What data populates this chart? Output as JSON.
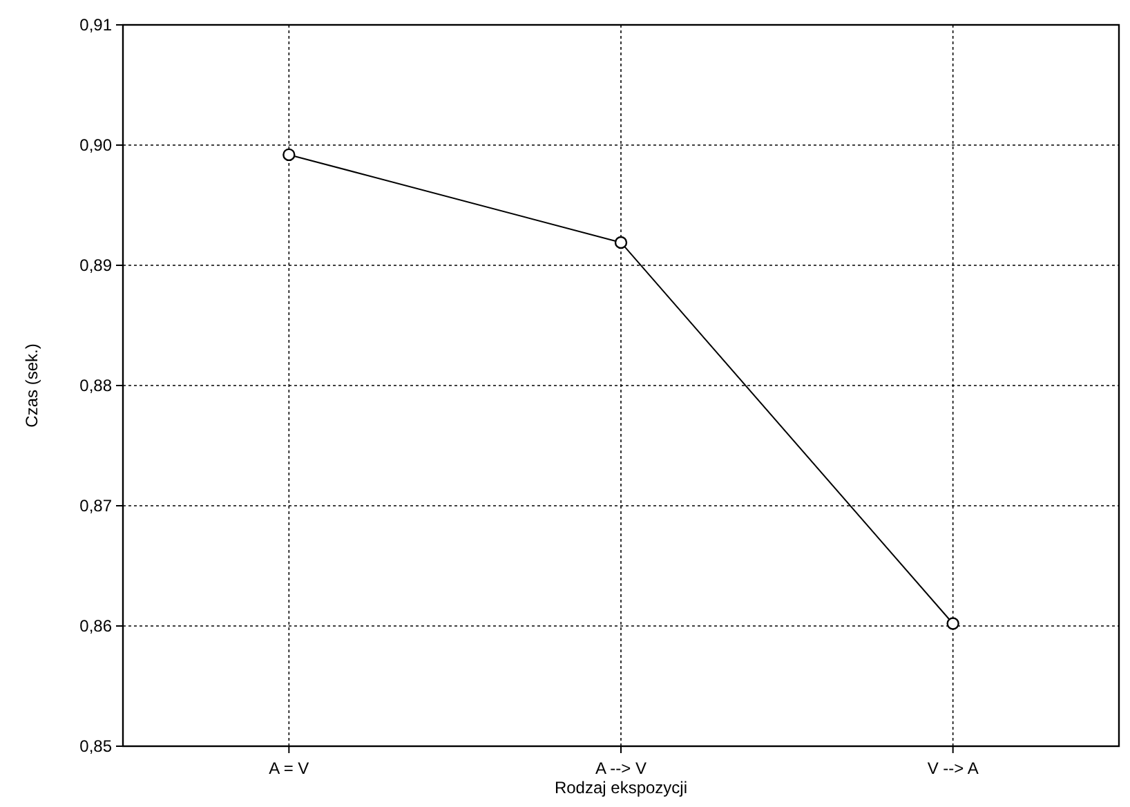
{
  "chart_data": {
    "type": "line",
    "xlabel": "Rodzaj ekspozycji",
    "ylabel": "Czas (sek.)",
    "categories": [
      "A = V",
      "A --> V",
      "V --> A"
    ],
    "series": [
      {
        "color": "#000000",
        "values": [
          0.8992,
          0.8919,
          0.8602
        ]
      }
    ],
    "ylim": [
      0.85,
      0.91
    ],
    "yticks": [
      {
        "value": 0.85,
        "label": "0,85"
      },
      {
        "value": 0.86,
        "label": "0,86"
      },
      {
        "value": 0.87,
        "label": "0,87"
      },
      {
        "value": 0.88,
        "label": "0,88"
      },
      {
        "value": 0.89,
        "label": "0,89"
      },
      {
        "value": 0.9,
        "label": "0,90"
      },
      {
        "value": 0.91,
        "label": "0,91"
      }
    ],
    "grid": true,
    "marker": "circle",
    "line_style": "solid"
  }
}
